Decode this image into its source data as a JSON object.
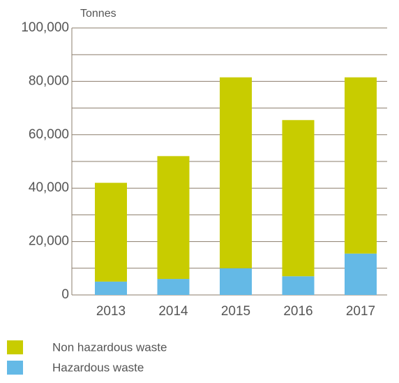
{
  "chart_data": {
    "type": "stacked_bar",
    "y_axis_label": "Tonnes",
    "categories": [
      "2013",
      "2014",
      "2015",
      "2016",
      "2017"
    ],
    "series": [
      {
        "name": "Non hazardous waste",
        "color": "#c8cc00",
        "values": [
          37000,
          46000,
          71500,
          58500,
          66000
        ]
      },
      {
        "name": "Hazardous waste",
        "color": "#64b9e6",
        "values": [
          5000,
          6000,
          10000,
          7000,
          15500
        ]
      }
    ],
    "ylim": [
      0,
      100000
    ],
    "yticks": [
      0,
      {
        "value": 20000,
        "label": "20,000"
      },
      {
        "value": 40000,
        "label": "40,000"
      },
      {
        "value": 60000,
        "label": "60,000"
      },
      {
        "value": 80000,
        "label": "80,000"
      },
      {
        "value": 100000,
        "label": "100,000"
      }
    ],
    "minor_yticks": [
      10000,
      30000,
      50000,
      70000,
      90000
    ],
    "grid": true
  }
}
